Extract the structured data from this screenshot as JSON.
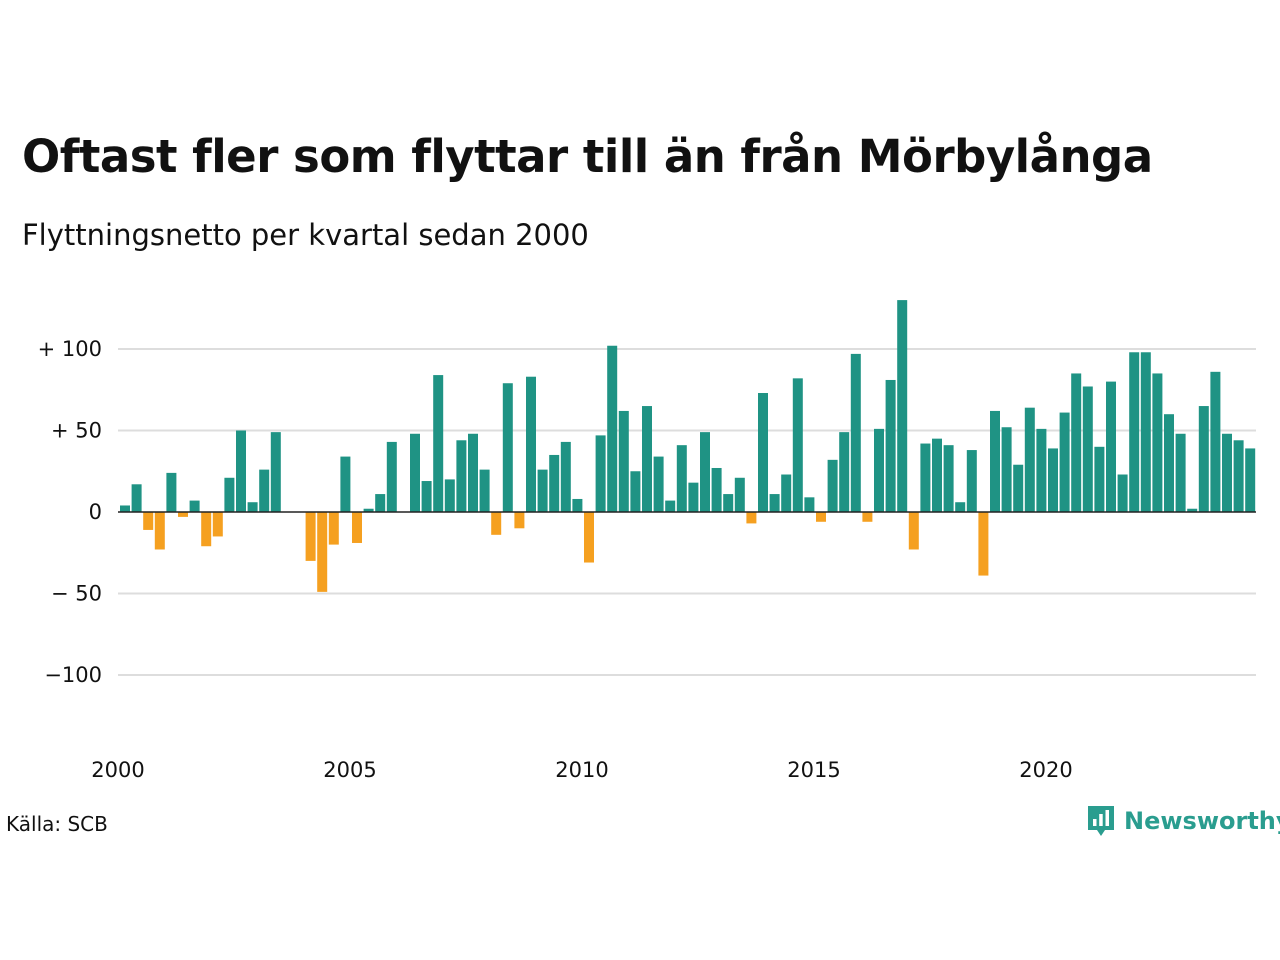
{
  "title": "Oftast fler som flyttar till än från Mörbylånga",
  "subtitle": "Flyttningsnetto per kvartal sedan 2000",
  "source": "Källa: SCB",
  "brand": {
    "name": "Newsworthy",
    "icon": "newsworthy-logo-icon"
  },
  "colors": {
    "positive": "#1f9384",
    "negative": "#f5a020",
    "grid": "#dddddd",
    "baseline": "#222222",
    "brand": "#2a9d8f"
  },
  "chart_data": {
    "type": "bar",
    "title": "Oftast fler som flyttar till än från Mörbylånga",
    "subtitle": "Flyttningsnetto per kvartal sedan 2000",
    "x_start": "2000 Q1",
    "x_tick_labels": [
      "2000",
      "2005",
      "2010",
      "2015",
      "2020"
    ],
    "y_tick_labels": [
      "+ 100",
      "+  50",
      "0",
      "− 50",
      "−100"
    ],
    "y_ticks": [
      100,
      50,
      0,
      -50,
      -100
    ],
    "ylim": [
      -100,
      130
    ],
    "grid": true,
    "values": [
      4,
      17,
      -11,
      -23,
      24,
      -3,
      7,
      -21,
      -15,
      21,
      50,
      6,
      26,
      49,
      0,
      0,
      -30,
      -49,
      -20,
      34,
      -19,
      2,
      11,
      43,
      0,
      48,
      19,
      84,
      20,
      44,
      48,
      26,
      -14,
      79,
      -10,
      83,
      26,
      35,
      43,
      8,
      -31,
      47,
      102,
      62,
      25,
      65,
      34,
      7,
      41,
      18,
      49,
      27,
      11,
      21,
      -7,
      73,
      11,
      23,
      82,
      9,
      -6,
      32,
      49,
      97,
      -6,
      51,
      81,
      130,
      -23,
      42,
      45,
      41,
      6,
      38,
      -39,
      62,
      52,
      29,
      64,
      51,
      39,
      61,
      85,
      77,
      40,
      80,
      23,
      98,
      98,
      85,
      60,
      48,
      2,
      65,
      86,
      48,
      44,
      39
    ]
  }
}
